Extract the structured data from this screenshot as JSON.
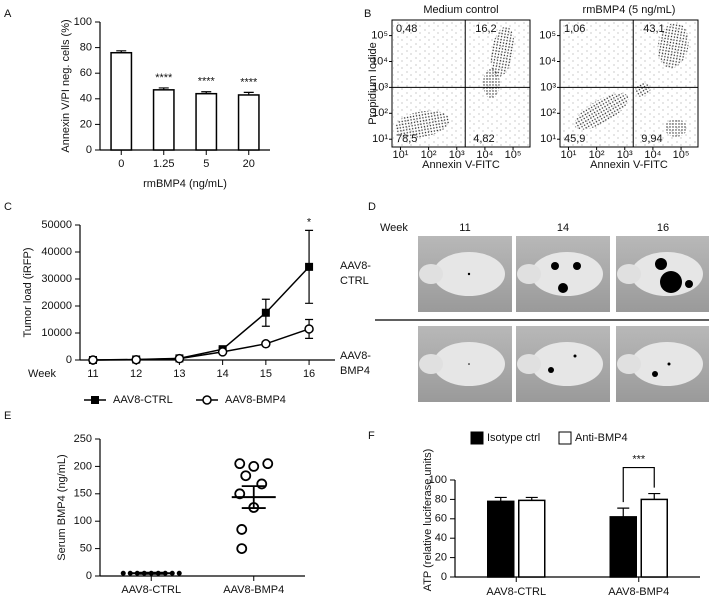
{
  "panel_letters": [
    "A",
    "B",
    "C",
    "D",
    "E",
    "F"
  ],
  "chart_data": [
    {
      "type": "bar",
      "categories": [
        "0",
        "1.25",
        "5",
        "20"
      ],
      "values": [
        76,
        47,
        44,
        43
      ],
      "errors": [
        1.5,
        1.5,
        1.5,
        2
      ],
      "color": "#ffffff",
      "ylim": [
        0,
        100
      ],
      "yticks": [
        0,
        20,
        40,
        60,
        80,
        100
      ],
      "ylabel": "Annexin V/PI neg. cells (%)",
      "xlabel": "rmBMP4 (ng/mL)",
      "annotations": [
        {
          "category": "1.25",
          "text": "****"
        },
        {
          "category": "5",
          "text": "****"
        },
        {
          "category": "20",
          "text": "****"
        }
      ]
    },
    {
      "type": "flow",
      "xlabel": "Annexin V-FITC",
      "ylabel": "Propidium Iodide",
      "xscale": "log",
      "yscale": "log",
      "xlim": [
        5,
        400000
      ],
      "ylim": [
        5,
        400000
      ],
      "xticks": [
        {
          "value": 10,
          "label": "10¹"
        },
        {
          "value": 100,
          "label": "10²"
        },
        {
          "value": 1000,
          "label": "10³"
        },
        {
          "value": 10000,
          "label": "10⁴"
        },
        {
          "value": 100000,
          "label": "10⁵"
        }
      ],
      "yticks": [
        {
          "value": 10,
          "label": "10¹"
        },
        {
          "value": 100,
          "label": "10²"
        },
        {
          "value": 1000,
          "label": "10³"
        },
        {
          "value": 10000,
          "label": "10⁴"
        },
        {
          "value": 100000,
          "label": "10⁵"
        }
      ],
      "gate": [
        2000,
        1000
      ],
      "plots": [
        {
          "title": "Medium control",
          "quadrants": [
            0.48,
            16.2,
            78.5,
            4.82
          ],
          "quadrant_labels": [
            "0,48",
            "16,2",
            "78,5",
            "4,82"
          ]
        },
        {
          "title": "rmBMP4 (5 ng/mL)",
          "quadrants": [
            1.06,
            43.1,
            45.9,
            9.94
          ],
          "quadrant_labels": [
            "1,06",
            "43,1",
            "45,9",
            "9,94"
          ]
        }
      ]
    },
    {
      "type": "line",
      "x": [
        11,
        12,
        13,
        14,
        15,
        16
      ],
      "xlim": [
        10.7,
        16.6
      ],
      "xticks": [
        11,
        12,
        13,
        14,
        15,
        16
      ],
      "xlabel": "Week",
      "ylim": [
        0,
        50000
      ],
      "yticks": [
        0,
        10000,
        20000,
        30000,
        40000,
        50000
      ],
      "ylabel": "Tumor load (iRFP)",
      "legend": "bottom",
      "series": [
        {
          "name": "AAV8-CTRL",
          "color": "#000000",
          "marker": "square",
          "values": [
            0,
            200,
            600,
            4000,
            17500,
            34500
          ],
          "errors": [
            0,
            100,
            200,
            500,
            5000,
            13500
          ]
        },
        {
          "name": "AAV8-BMP4",
          "color": "#000000",
          "marker": "open-circle",
          "values": [
            0,
            100,
            500,
            3000,
            6000,
            11500
          ],
          "errors": [
            0,
            50,
            100,
            300,
            800,
            3500
          ]
        }
      ],
      "annotations": [
        {
          "x": 16,
          "text": "*"
        }
      ]
    },
    {
      "type": "dot",
      "categories": [
        "AAV8-CTRL",
        "AAV8-BMP4"
      ],
      "point_markers": [
        "filled-circle",
        "open-circle"
      ],
      "points": [
        [
          5,
          5,
          5,
          5,
          5,
          5,
          5,
          5,
          5
        ],
        [
          205,
          200,
          205,
          183,
          168,
          150,
          125,
          85,
          50
        ]
      ],
      "mean": [
        5,
        144
      ],
      "sem": [
        1,
        20
      ],
      "ylim": [
        0,
        250
      ],
      "yticks": [
        0,
        50,
        100,
        150,
        200,
        250
      ],
      "ylabel": "Serum BMP4 (ng/mL)"
    },
    {
      "type": "grouped-bar",
      "categories": [
        "AAV8-CTRL",
        "AAV8-BMP4"
      ],
      "legend": "top",
      "series": [
        {
          "name": "Isotype ctrl",
          "color": "#000000",
          "values": [
            78,
            62
          ],
          "errors": [
            4,
            9
          ]
        },
        {
          "name": "Anti-BMP4",
          "color": "#ffffff",
          "values": [
            79,
            80
          ],
          "errors": [
            3,
            6
          ]
        }
      ],
      "ylim": [
        0,
        100
      ],
      "yticks": [
        0,
        20,
        40,
        60,
        80,
        100
      ],
      "ylabel": "ATP (relative luciferase units)",
      "annotations": [
        {
          "category": "AAV8-BMP4",
          "text": "***"
        }
      ]
    }
  ],
  "image_panel": {
    "column_header": "Week",
    "columns": [
      "11",
      "14",
      "16"
    ],
    "rows": [
      [
        "AAV8-",
        "CTRL"
      ],
      [
        "AAV8-",
        "BMP4"
      ]
    ]
  }
}
